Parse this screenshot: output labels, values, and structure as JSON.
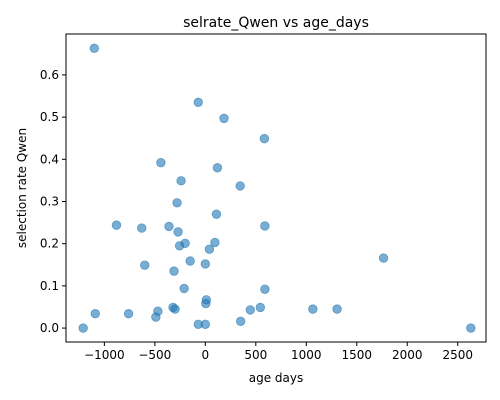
{
  "chart_data": {
    "type": "scatter",
    "title": "selrate_Qwen vs age_days",
    "xlabel": "age days",
    "ylabel": "selection rate Qwen",
    "xlim": [
      -1380,
      2780
    ],
    "ylim": [
      -0.033,
      0.697
    ],
    "xticks": [
      -1000,
      -500,
      0,
      500,
      1000,
      1500,
      2000,
      2500
    ],
    "xtick_labels": [
      "−1000",
      "−500",
      "0",
      "500",
      "1000",
      "1500",
      "2000",
      "2500"
    ],
    "yticks": [
      0.0,
      0.1,
      0.2,
      0.3,
      0.4,
      0.5,
      0.6
    ],
    "ytick_labels": [
      "0.0",
      "0.1",
      "0.2",
      "0.3",
      "0.4",
      "0.5",
      "0.6"
    ],
    "grid": false,
    "color": "#1f77b4",
    "x": [
      -1100,
      -70,
      185,
      585,
      -440,
      120,
      -240,
      345,
      -280,
      110,
      -880,
      -360,
      590,
      -630,
      -270,
      95,
      -200,
      -255,
      40,
      -150,
      0,
      -600,
      -310,
      1765,
      -210,
      590,
      10,
      5,
      -320,
      -470,
      -300,
      -1090,
      -760,
      545,
      445,
      1065,
      1305,
      -490,
      -70,
      350,
      0,
      -1210,
      2630
    ],
    "y": [
      0.663,
      0.535,
      0.497,
      0.449,
      0.392,
      0.38,
      0.349,
      0.337,
      0.297,
      0.27,
      0.244,
      0.241,
      0.242,
      0.237,
      0.228,
      0.203,
      0.201,
      0.195,
      0.187,
      0.159,
      0.152,
      0.149,
      0.135,
      0.166,
      0.094,
      0.092,
      0.067,
      0.058,
      0.049,
      0.04,
      0.045,
      0.034,
      0.034,
      0.049,
      0.043,
      0.045,
      0.045,
      0.026,
      0.009,
      0.016,
      0.009,
      0.0,
      0.0
    ]
  }
}
